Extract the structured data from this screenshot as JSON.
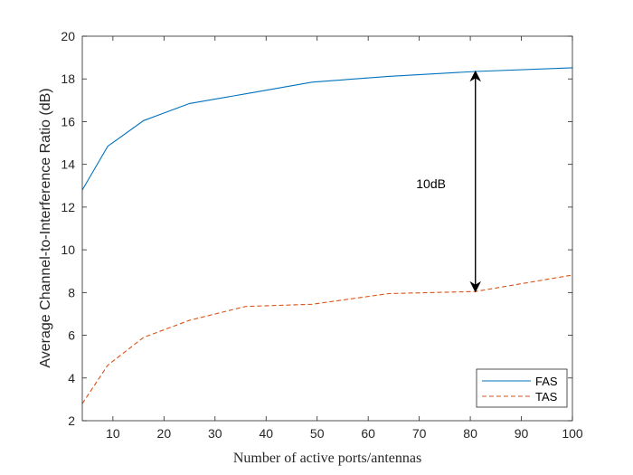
{
  "chart_data": {
    "type": "line",
    "xlabel": "Number of active ports/antennas",
    "ylabel": "Average Channel-to-Interference Ratio (dB)",
    "xlim": [
      4,
      100
    ],
    "ylim": [
      2,
      20
    ],
    "xticks": [
      10,
      20,
      30,
      40,
      50,
      60,
      70,
      80,
      90,
      100
    ],
    "yticks": [
      2,
      4,
      6,
      8,
      10,
      12,
      14,
      16,
      18,
      20
    ],
    "grid": false,
    "legend_position": "bottom-right",
    "series": [
      {
        "name": "FAS",
        "color": "#0072bd",
        "dash": "solid",
        "x": [
          4,
          9,
          16,
          25,
          36,
          49,
          64,
          81,
          100
        ],
        "y": [
          12.8,
          14.85,
          16.05,
          16.85,
          17.3,
          17.85,
          18.12,
          18.35,
          18.52
        ]
      },
      {
        "name": "TAS",
        "color": "#d95319",
        "dash": "dashed",
        "x": [
          4,
          9,
          16,
          25,
          36,
          49,
          64,
          81,
          100
        ],
        "y": [
          2.8,
          4.6,
          5.9,
          6.7,
          7.35,
          7.45,
          7.95,
          8.05,
          8.82
        ]
      }
    ],
    "annotation": {
      "text": "10dB",
      "x": 81,
      "y_from": 8.05,
      "y_to": 18.35,
      "label_x": 72.3,
      "label_y": 13.1
    }
  }
}
